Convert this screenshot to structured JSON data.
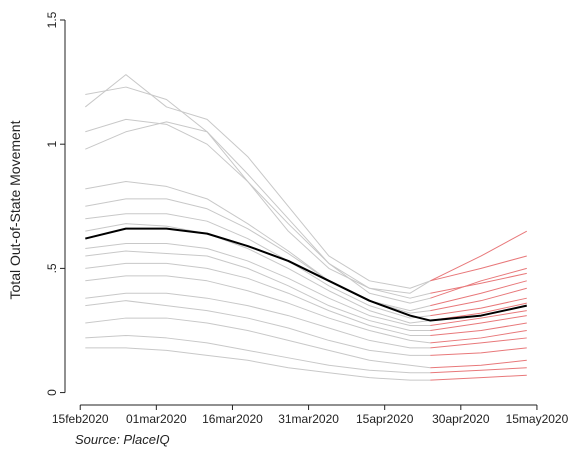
{
  "chart_data": {
    "type": "line",
    "y_label": "Total Out-of-State Movement",
    "note": "Source: PlaceIQ",
    "x": [
      1,
      9,
      17,
      25,
      33,
      41,
      49,
      57,
      65,
      69,
      79,
      88
    ],
    "xlim": [
      -3,
      91
    ],
    "xticks": [
      {
        "value": 0,
        "label": "15feb2020"
      },
      {
        "value": 15,
        "label": "01mar2020"
      },
      {
        "value": 30,
        "label": "16mar2020"
      },
      {
        "value": 45,
        "label": "31mar2020"
      },
      {
        "value": 60,
        "label": "15apr2020"
      },
      {
        "value": 75,
        "label": "30apr2020"
      },
      {
        "value": 90,
        "label": "15may2020"
      }
    ],
    "ylim": [
      -0.05,
      1.5
    ],
    "yticks": [
      0,
      {
        "value": 0.5,
        "label": ".5"
      },
      1,
      1.5
    ],
    "highlight_from": 69,
    "highlight_color": "#e8787a",
    "series": [
      {
        "color": "#c8c8c8",
        "values": [
          1.2,
          1.23,
          1.18,
          1.05,
          0.85,
          0.65,
          0.5,
          0.42,
          0.4,
          0.45,
          0.55,
          0.65
        ]
      },
      {
        "color": "#c8c8c8",
        "values": [
          1.15,
          1.28,
          1.15,
          1.1,
          0.95,
          0.75,
          0.55,
          0.45,
          0.42,
          0.45,
          0.5,
          0.55
        ]
      },
      {
        "color": "#c8c8c8",
        "values": [
          1.05,
          1.1,
          1.08,
          1.0,
          0.85,
          0.68,
          0.52,
          0.4,
          0.36,
          0.38,
          0.45,
          0.5
        ]
      },
      {
        "color": "#c8c8c8",
        "values": [
          0.98,
          1.05,
          1.09,
          1.05,
          0.88,
          0.7,
          0.52,
          0.42,
          0.38,
          0.4,
          0.44,
          0.48
        ]
      },
      {
        "color": "#c8c8c8",
        "values": [
          0.82,
          0.85,
          0.83,
          0.78,
          0.68,
          0.57,
          0.45,
          0.37,
          0.33,
          0.35,
          0.4,
          0.45
        ]
      },
      {
        "color": "#c8c8c8",
        "values": [
          0.75,
          0.78,
          0.78,
          0.74,
          0.66,
          0.56,
          0.45,
          0.37,
          0.32,
          0.33,
          0.37,
          0.42
        ]
      },
      {
        "color": "#c8c8c8",
        "values": [
          0.7,
          0.72,
          0.72,
          0.69,
          0.62,
          0.53,
          0.43,
          0.35,
          0.3,
          0.31,
          0.34,
          0.38
        ]
      },
      {
        "color": "#c8c8c8",
        "values": [
          0.65,
          0.68,
          0.67,
          0.64,
          0.58,
          0.5,
          0.41,
          0.33,
          0.28,
          0.29,
          0.32,
          0.36
        ]
      },
      {
        "color": "#c8c8c8",
        "values": [
          0.58,
          0.6,
          0.6,
          0.58,
          0.53,
          0.46,
          0.38,
          0.31,
          0.27,
          0.27,
          0.3,
          0.33
        ]
      },
      {
        "color": "#c8c8c8",
        "values": [
          0.55,
          0.57,
          0.56,
          0.55,
          0.5,
          0.43,
          0.35,
          0.29,
          0.25,
          0.25,
          0.28,
          0.31
        ]
      },
      {
        "color": "#c8c8c8",
        "values": [
          0.5,
          0.52,
          0.52,
          0.5,
          0.46,
          0.4,
          0.33,
          0.27,
          0.23,
          0.23,
          0.25,
          0.28
        ]
      },
      {
        "color": "#c8c8c8",
        "values": [
          0.45,
          0.47,
          0.47,
          0.45,
          0.41,
          0.36,
          0.3,
          0.25,
          0.21,
          0.2,
          0.22,
          0.25
        ]
      },
      {
        "color": "#c8c8c8",
        "values": [
          0.38,
          0.4,
          0.4,
          0.38,
          0.35,
          0.31,
          0.26,
          0.21,
          0.18,
          0.18,
          0.2,
          0.22
        ]
      },
      {
        "color": "#c8c8c8",
        "values": [
          0.35,
          0.37,
          0.35,
          0.33,
          0.3,
          0.26,
          0.21,
          0.17,
          0.15,
          0.15,
          0.16,
          0.18
        ]
      },
      {
        "color": "#c8c8c8",
        "values": [
          0.28,
          0.3,
          0.3,
          0.28,
          0.25,
          0.21,
          0.17,
          0.13,
          0.11,
          0.1,
          0.11,
          0.13
        ]
      },
      {
        "color": "#c8c8c8",
        "values": [
          0.22,
          0.23,
          0.22,
          0.2,
          0.17,
          0.14,
          0.11,
          0.09,
          0.08,
          0.08,
          0.09,
          0.1
        ]
      },
      {
        "color": "#c8c8c8",
        "values": [
          0.18,
          0.18,
          0.17,
          0.15,
          0.13,
          0.1,
          0.08,
          0.06,
          0.05,
          0.05,
          0.06,
          0.07
        ]
      },
      {
        "color": "#000000",
        "width": 2,
        "values": [
          0.62,
          0.66,
          0.66,
          0.64,
          0.59,
          0.53,
          0.45,
          0.37,
          0.31,
          0.29,
          0.31,
          0.35
        ]
      }
    ]
  }
}
